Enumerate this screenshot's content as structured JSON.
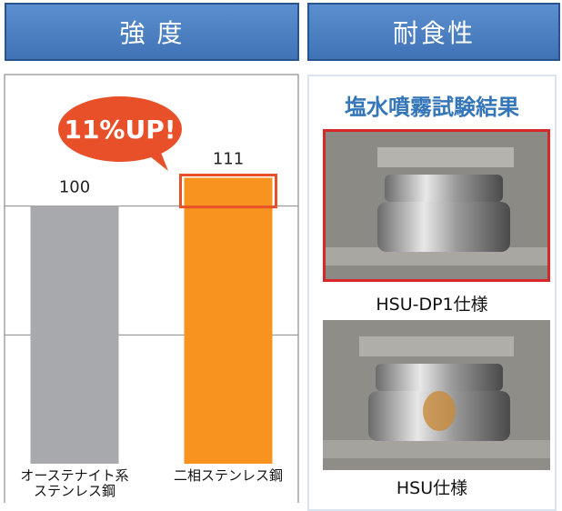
{
  "headers": {
    "left": "強 度",
    "right": "耐食性"
  },
  "chart_data": {
    "type": "bar",
    "annotation": "11%UP!",
    "categories": [
      "オーステナイト系ステンレス鋼",
      "二相ステンレス鋼"
    ],
    "values": [
      100,
      111
    ],
    "colors": [
      "#a7a9ac",
      "#f7931e"
    ],
    "highlight_color": "#e8502a",
    "ylim": [
      0,
      150
    ],
    "yticks": [
      50,
      100
    ],
    "grid": true,
    "tick_labels": false
  },
  "corrosion": {
    "title": "塩水噴霧試験結果",
    "photos": [
      {
        "caption": "HSU-DP1仕様"
      },
      {
        "caption": "HSU仕様"
      }
    ]
  }
}
